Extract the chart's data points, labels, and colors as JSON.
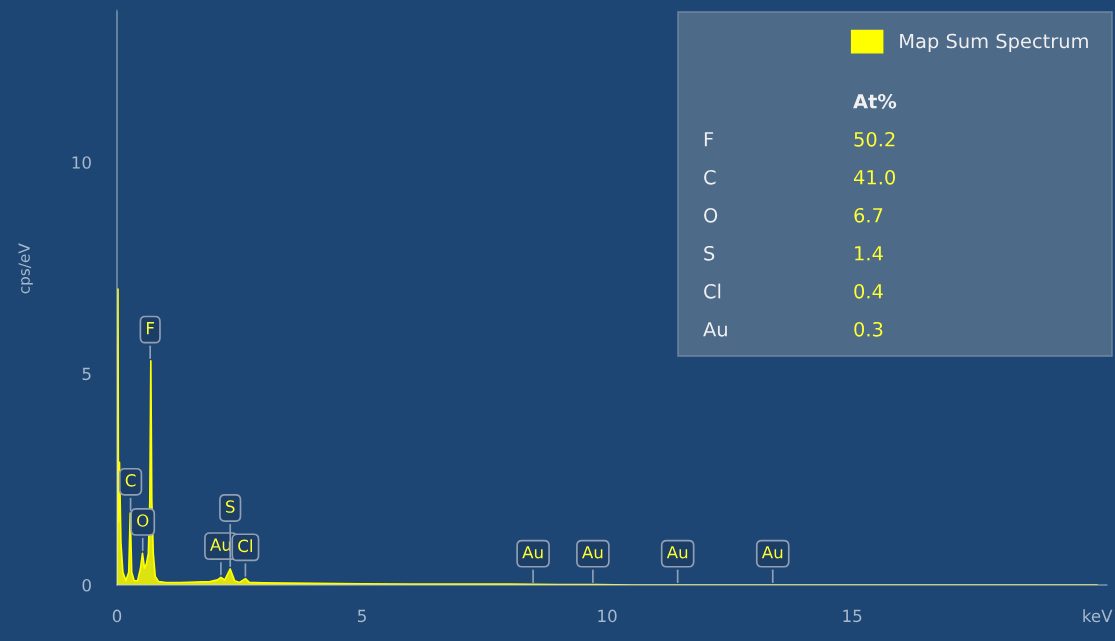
{
  "chart_data": {
    "type": "area",
    "xlabel": null,
    "ylabel": "cps/eV",
    "x": [
      0,
      0.01,
      0.02,
      0.03,
      0.05,
      0.08,
      0.12,
      0.18,
      0.24,
      0.27,
      0.3,
      0.35,
      0.42,
      0.48,
      0.52,
      0.56,
      0.6,
      0.64,
      0.67,
      0.69,
      0.71,
      0.74,
      0.78,
      0.85,
      1.0,
      1.3,
      1.6,
      1.9,
      2.05,
      2.12,
      2.2,
      2.31,
      2.4,
      2.5,
      2.62,
      2.7,
      3.0,
      4.0,
      5.0,
      6.0,
      7.0,
      8.0,
      9.0,
      9.8,
      10.5,
      20.0
    ],
    "series": [
      {
        "name": "Map Sum Spectrum",
        "color": "#ffff00",
        "values": [
          0,
          1.5,
          7.0,
          1.5,
          2.9,
          1.0,
          0.3,
          0.1,
          0.3,
          1.7,
          0.3,
          0.1,
          0.1,
          0.4,
          0.75,
          0.4,
          0.5,
          0.75,
          2.0,
          5.3,
          2.0,
          0.75,
          0.2,
          0.08,
          0.06,
          0.06,
          0.07,
          0.08,
          0.12,
          0.18,
          0.12,
          0.38,
          0.1,
          0.06,
          0.15,
          0.06,
          0.05,
          0.04,
          0.03,
          0.02,
          0.02,
          0.02,
          0.01,
          0.01,
          0,
          0
        ]
      }
    ],
    "xlim": [
      0,
      20.2
    ],
    "ylim": [
      0,
      13.6
    ],
    "xticks": [
      0,
      5,
      10,
      15,
      {
        "value": 20,
        "label": "keV"
      }
    ],
    "yticks": [
      0,
      5,
      10
    ],
    "grid": false,
    "legend": "top right",
    "annotations": [
      {
        "text": "O",
        "x": 0.525,
        "y": 0.75
      },
      {
        "text": "C",
        "x": 0.277,
        "y": 1.7
      },
      {
        "text": "F",
        "x": 0.677,
        "y": 5.3
      },
      {
        "text": "Au",
        "x": 2.12,
        "y": 0.18
      },
      {
        "text": "S",
        "x": 2.31,
        "y": 0.38
      },
      {
        "text": "Cl",
        "x": 2.62,
        "y": 0.15
      },
      {
        "text": "Au",
        "x": 8.49,
        "y": 0
      },
      {
        "text": "Au",
        "x": 9.71,
        "y": 0
      },
      {
        "text": "Au",
        "x": 11.44,
        "y": 0
      },
      {
        "text": "Au",
        "x": 13.38,
        "y": 0
      },
      "At%",
      "F",
      "50.2",
      "C",
      "41.0",
      "O",
      "6.7",
      "S",
      "1.4",
      "Cl",
      "0.4",
      "Au",
      "0.3"
    ]
  }
}
